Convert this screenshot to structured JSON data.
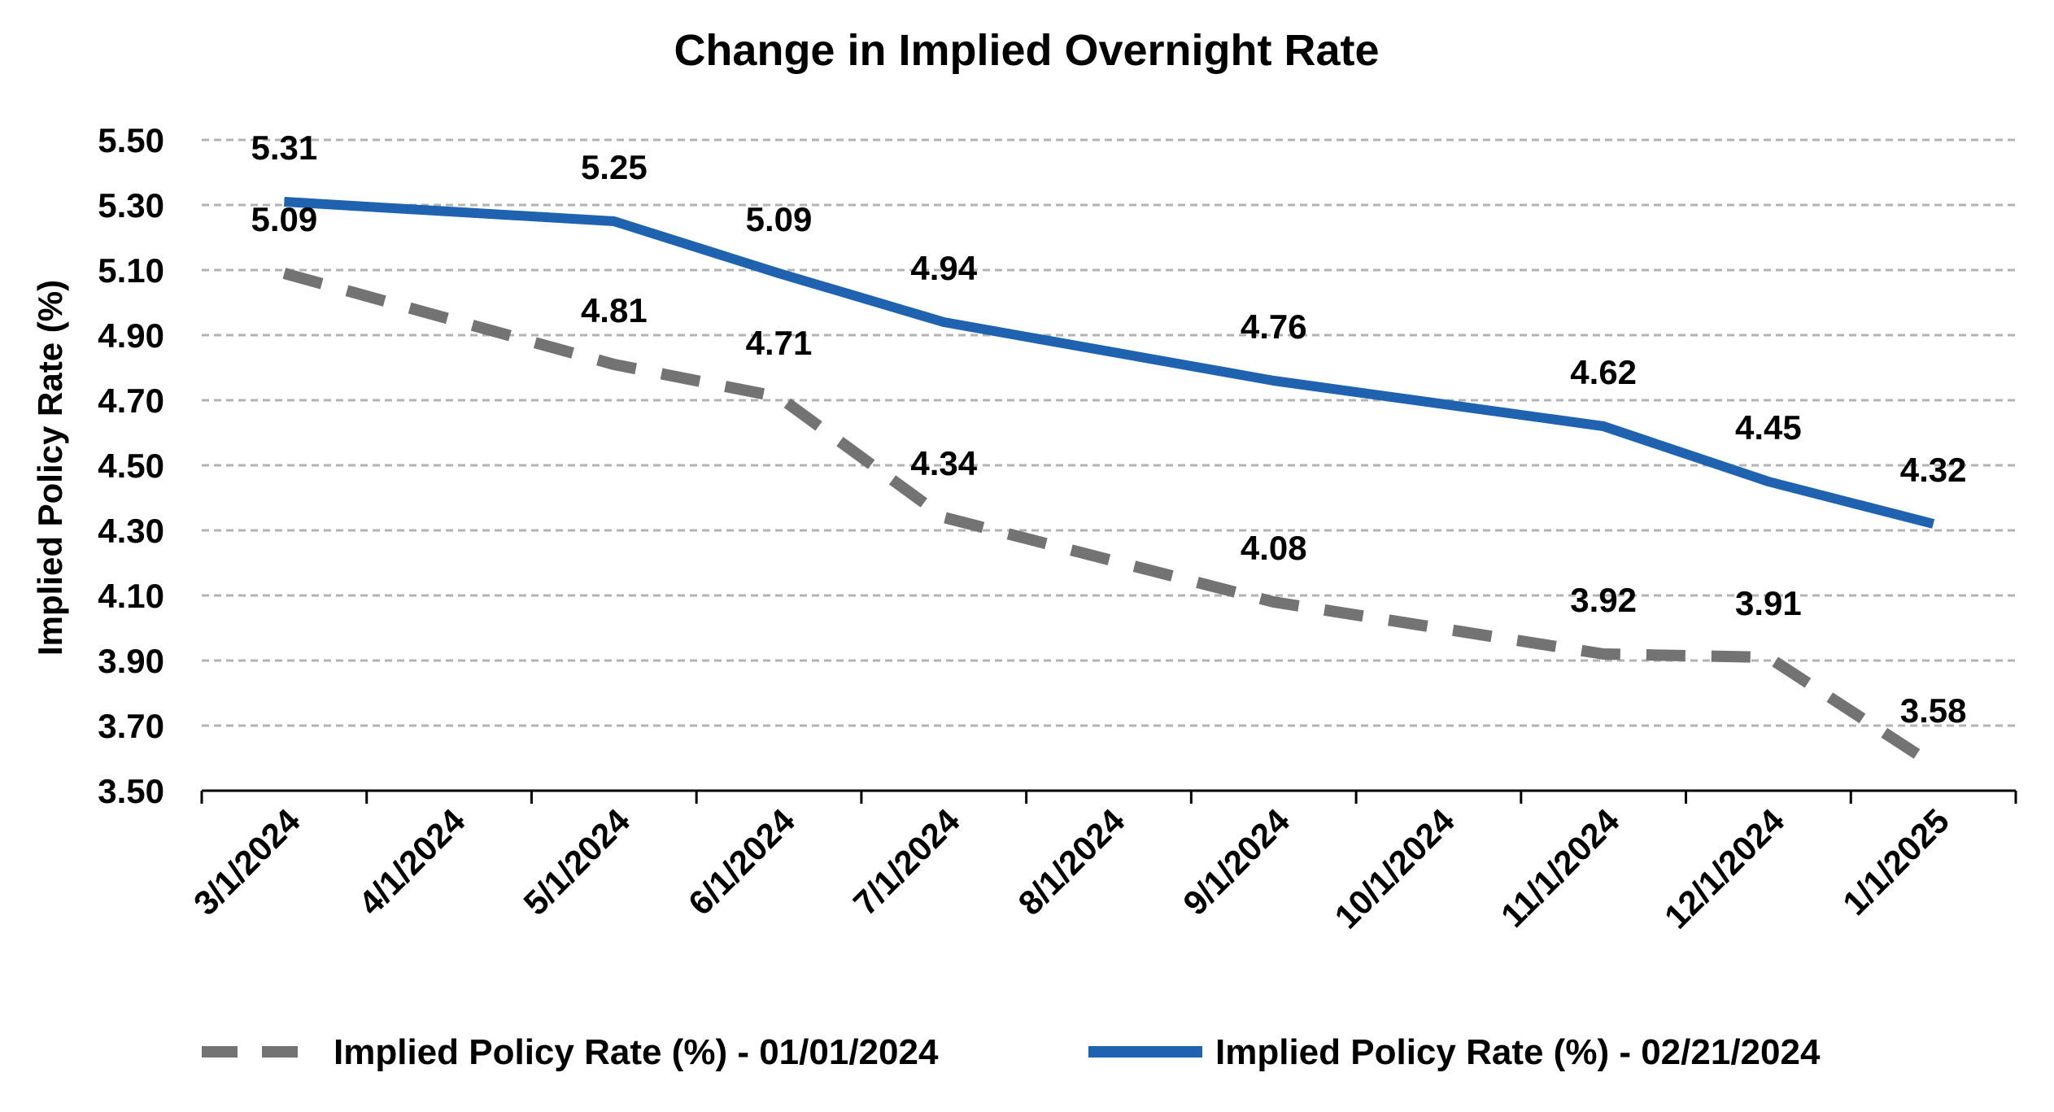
{
  "chart_data": {
    "type": "line",
    "title": "Change in Implied Overnight Rate",
    "xlabel": "",
    "ylabel": "Implied Policy Rate (%)",
    "ylim": [
      3.5,
      5.5
    ],
    "yticks": [
      "5.50",
      "5.30",
      "5.10",
      "4.90",
      "4.70",
      "4.50",
      "4.30",
      "4.10",
      "3.90",
      "3.70",
      "3.50"
    ],
    "ytick_values": [
      5.5,
      5.3,
      5.1,
      4.9,
      4.7,
      4.5,
      4.3,
      4.1,
      3.9,
      3.7,
      3.5
    ],
    "categories": [
      "3/1/2024",
      "4/1/2024",
      "5/1/2024",
      "6/1/2024",
      "7/1/2024",
      "8/1/2024",
      "9/1/2024",
      "10/1/2024",
      "11/1/2024",
      "12/1/2024",
      "1/1/2025"
    ],
    "grid": true,
    "legend_position": "bottom",
    "series": [
      {
        "name": "Implied Policy Rate (%) - 01/01/2024",
        "style": "dashed",
        "color": "#737373",
        "x": [
          0,
          2,
          3,
          4,
          6,
          8,
          9,
          10
        ],
        "values": [
          5.09,
          4.81,
          4.71,
          4.34,
          4.08,
          3.92,
          3.91,
          3.58
        ],
        "labels": [
          "5.09",
          "4.81",
          "4.71",
          "4.34",
          "4.08",
          "3.92",
          "3.91",
          "3.58"
        ]
      },
      {
        "name": "Implied Policy Rate (%) - 02/21/2024",
        "style": "solid",
        "color": "#1F63B0",
        "x": [
          0,
          2,
          3,
          4,
          6,
          8,
          9,
          10
        ],
        "values": [
          5.31,
          5.25,
          5.09,
          4.94,
          4.76,
          4.62,
          4.45,
          4.32
        ],
        "labels": [
          "5.31",
          "5.25",
          "5.09",
          "4.94",
          "4.76",
          "4.62",
          "4.45",
          "4.32"
        ]
      }
    ]
  }
}
